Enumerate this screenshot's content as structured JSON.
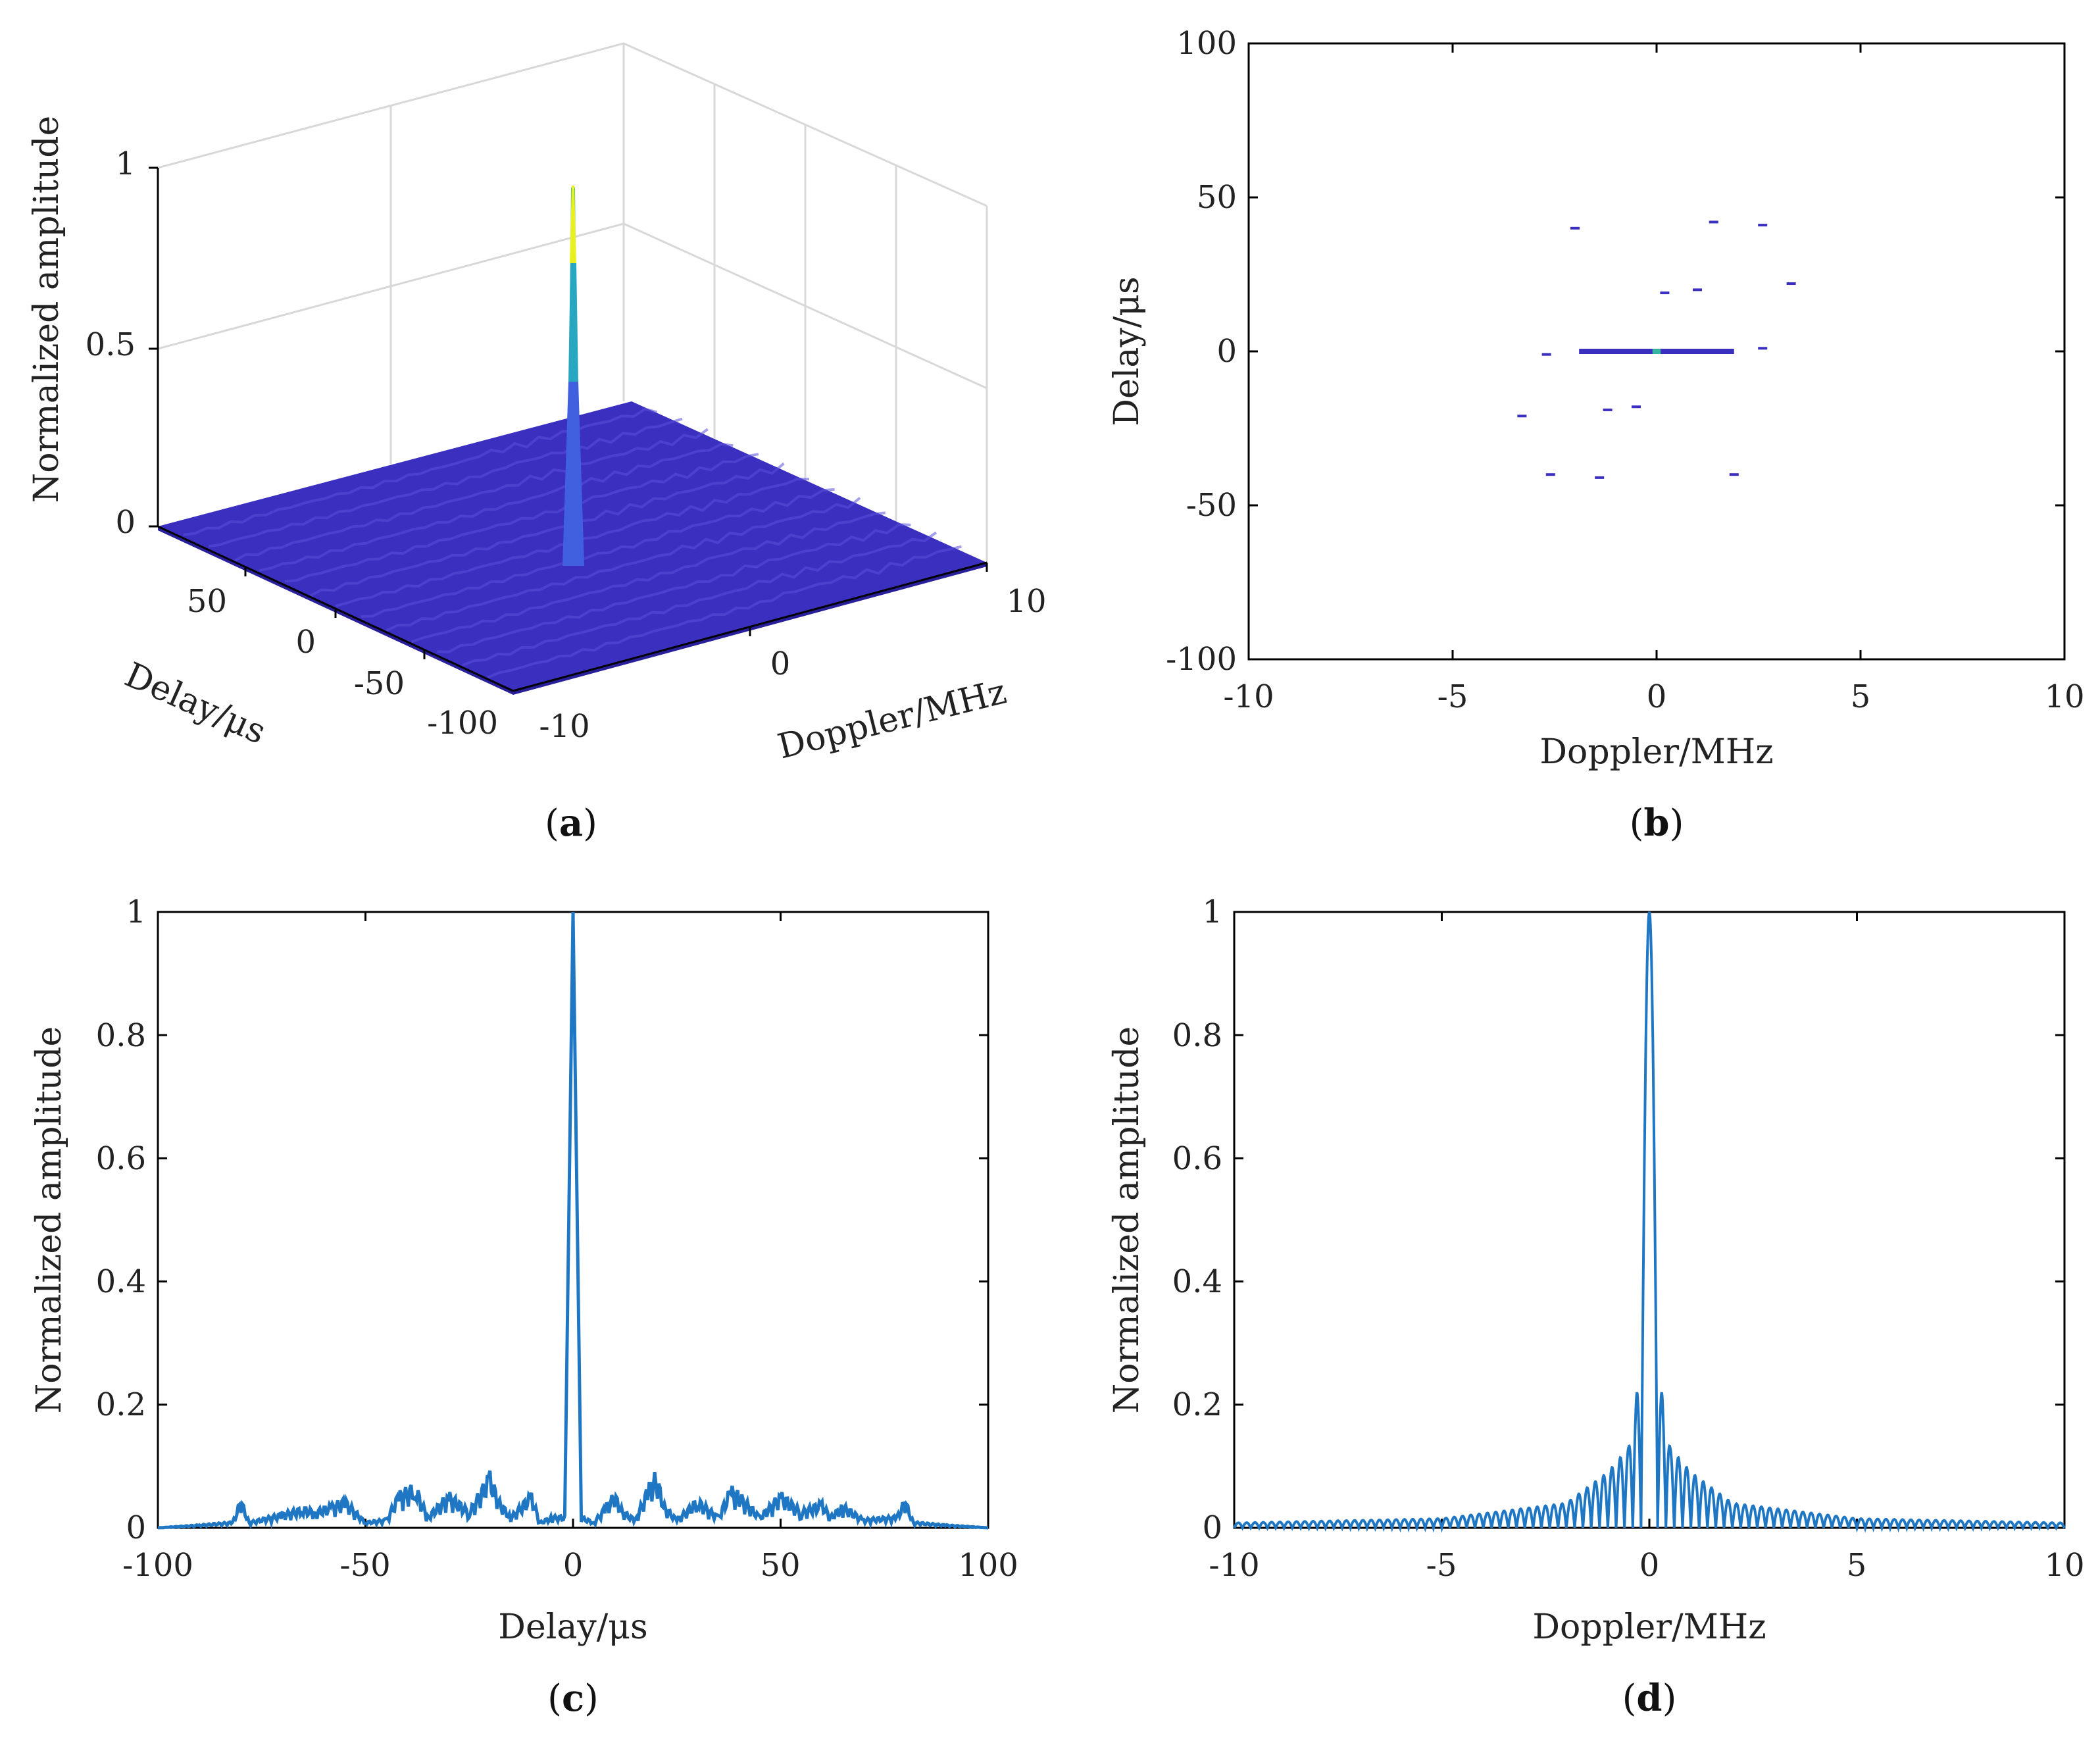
{
  "colors": {
    "line": "#1f77c4",
    "surface": "#3b2fc0",
    "surface_dark": "#2a1f9a",
    "peak": "#e8f020",
    "axis": "#000000",
    "grid": "#d8d8d8"
  },
  "chart_data": [
    {
      "panel": "a",
      "type": "surface3d",
      "caption_open": "(",
      "caption_letter": "a",
      "caption_close": ")",
      "xlabel": "Doppler/MHz",
      "ylabel": "Delay/μs",
      "zlabel": "Normalized amplitude",
      "x_ticks": [
        "-10",
        "0",
        "10"
      ],
      "y_ticks": [
        "50",
        "0",
        "-50",
        "-100"
      ],
      "z_ticks": [
        "0",
        "0.5",
        "1"
      ],
      "xlim": [
        -10,
        10
      ],
      "ylim": [
        -100,
        100
      ],
      "zlim": [
        0,
        1
      ],
      "peak": {
        "x": 0,
        "y": 0,
        "z": 1
      }
    },
    {
      "panel": "b",
      "type": "scatter",
      "caption_open": "(",
      "caption_letter": "b",
      "caption_close": ")",
      "xlabel": "Doppler/MHz",
      "ylabel": "Delay/μs",
      "x_ticks": [
        "-10",
        "-5",
        "0",
        "5",
        "10"
      ],
      "y_ticks": [
        "100",
        "50",
        "0",
        "-50",
        "-100"
      ],
      "xlim": [
        -10,
        10
      ],
      "ylim": [
        -100,
        100
      ],
      "points": [
        {
          "x": -2.0,
          "y": 40
        },
        {
          "x": 1.4,
          "y": 42
        },
        {
          "x": 2.6,
          "y": 41
        },
        {
          "x": 0.2,
          "y": 19
        },
        {
          "x": 1.0,
          "y": 20
        },
        {
          "x": 3.3,
          "y": 22
        },
        {
          "x": -3.3,
          "y": -21
        },
        {
          "x": -1.2,
          "y": -19
        },
        {
          "x": -0.5,
          "y": -18
        },
        {
          "x": -2.6,
          "y": -40
        },
        {
          "x": -1.4,
          "y": -41
        },
        {
          "x": 1.9,
          "y": -40
        },
        {
          "x": -2.7,
          "y": -1
        },
        {
          "x": 2.6,
          "y": 1
        }
      ],
      "center_band": [
        -1.9,
        1.9
      ]
    },
    {
      "panel": "c",
      "type": "line",
      "caption_open": "(",
      "caption_letter": "c",
      "caption_close": ")",
      "xlabel": "Delay/μs",
      "ylabel": "Normalized amplitude",
      "x_ticks": [
        "-100",
        "-50",
        "0",
        "50",
        "100"
      ],
      "y_ticks": [
        "0",
        "0.2",
        "0.4",
        "0.6",
        "0.8",
        "1"
      ],
      "xlim": [
        -100,
        100
      ],
      "ylim": [
        0,
        1
      ],
      "x": [
        -100,
        -90,
        -82,
        -80,
        -78,
        -70,
        -65,
        -62,
        -58,
        -55,
        -50,
        -45,
        -42,
        -38,
        -35,
        -30,
        -25,
        -20,
        -18,
        -15,
        -10,
        -8,
        -5,
        -2,
        0,
        2,
        5,
        8,
        10,
        12,
        15,
        18,
        20,
        22,
        25,
        30,
        35,
        38,
        40,
        45,
        50,
        55,
        60,
        62,
        65,
        70,
        78,
        80,
        82,
        90,
        100
      ],
      "y": [
        0.0,
        0.005,
        0.01,
        0.05,
        0.01,
        0.025,
        0.035,
        0.03,
        0.04,
        0.05,
        0.01,
        0.015,
        0.06,
        0.075,
        0.02,
        0.06,
        0.03,
        0.095,
        0.05,
        0.02,
        0.06,
        0.01,
        0.02,
        0.02,
        1.0,
        0.02,
        0.01,
        0.04,
        0.06,
        0.03,
        0.015,
        0.07,
        0.095,
        0.04,
        0.015,
        0.05,
        0.02,
        0.07,
        0.06,
        0.02,
        0.06,
        0.03,
        0.045,
        0.02,
        0.04,
        0.015,
        0.02,
        0.05,
        0.01,
        0.005,
        0.0
      ]
    },
    {
      "panel": "d",
      "type": "line",
      "caption_open": "(",
      "caption_letter": "d",
      "caption_close": ")",
      "xlabel": "Doppler/MHz",
      "ylabel": "Normalized amplitude",
      "x_ticks": [
        "-10",
        "-5",
        "0",
        "5",
        "10"
      ],
      "y_ticks": [
        "0",
        "0.2",
        "0.4",
        "0.6",
        "0.8",
        "1"
      ],
      "xlim": [
        -10,
        10
      ],
      "ylim": [
        0,
        1
      ],
      "sidelobe_peaks": [
        {
          "x": -0.3,
          "y": 0.22
        },
        {
          "x": 0.3,
          "y": 0.22
        },
        {
          "x": -0.5,
          "y": 0.13
        },
        {
          "x": 0.5,
          "y": 0.13
        },
        {
          "x": -1.0,
          "y": 0.09
        },
        {
          "x": 1.0,
          "y": 0.09
        },
        {
          "x": -2.0,
          "y": 0.04
        },
        {
          "x": 2.0,
          "y": 0.04
        },
        {
          "x": -5.0,
          "y": 0.015
        },
        {
          "x": 5.0,
          "y": 0.015
        },
        {
          "x": -10.0,
          "y": 0.008
        },
        {
          "x": 10.0,
          "y": 0.008
        }
      ],
      "mainlobe": {
        "x": 0,
        "y": 1
      }
    }
  ]
}
